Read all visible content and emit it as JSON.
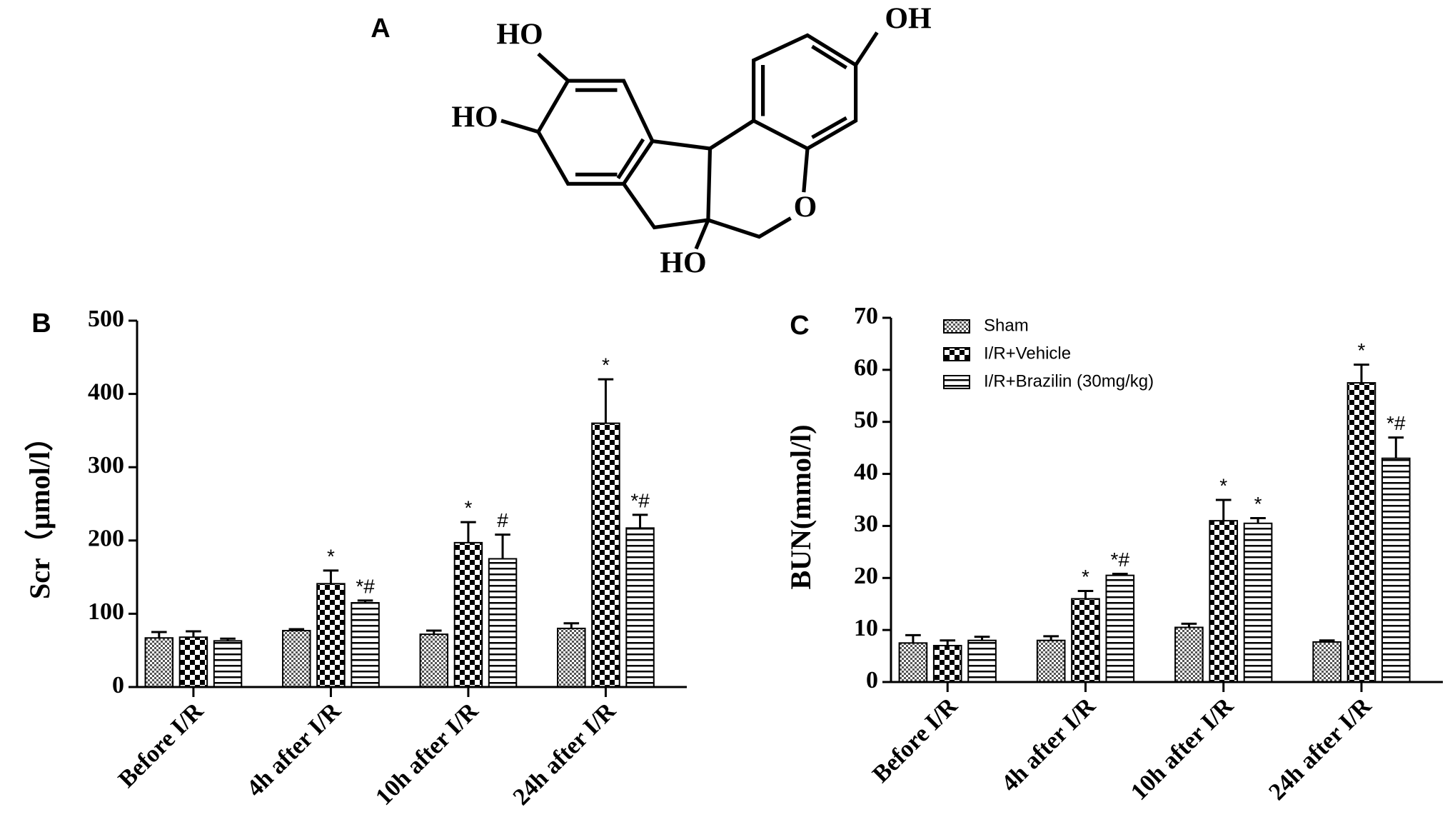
{
  "structure": {
    "label": "A",
    "atoms": [
      "HO",
      "HO",
      "HO",
      "O",
      "OH"
    ]
  },
  "chart_data": [
    {
      "type": "bar",
      "label": "B",
      "ylabel": "Scr（μmol/l）",
      "categories": [
        "Before I/R",
        "4h after I/R",
        "10h after I/R",
        "24h after I/R"
      ],
      "series": [
        {
          "pattern": "fine-check",
          "values": [
            67,
            77,
            72,
            80
          ],
          "errors": [
            8,
            2,
            5,
            7
          ],
          "annotations": [
            null,
            null,
            null,
            null
          ]
        },
        {
          "pattern": "check",
          "values": [
            68,
            141,
            197,
            360
          ],
          "errors": [
            8,
            18,
            28,
            60
          ],
          "annotations": [
            null,
            "*",
            "*",
            "*"
          ]
        },
        {
          "pattern": "hstripe",
          "values": [
            63,
            115,
            175,
            217
          ],
          "errors": [
            3,
            3,
            33,
            18
          ],
          "annotations": [
            null,
            "*#",
            "#",
            "*#"
          ]
        }
      ],
      "ylim": [
        0,
        500
      ],
      "yticks": [
        0,
        100,
        200,
        300,
        400,
        500
      ]
    },
    {
      "type": "bar",
      "label": "C",
      "ylabel": "BUN(mmol/l)",
      "categories": [
        "Before I/R",
        "4h after I/R",
        "10h after I/R",
        "24h after I/R"
      ],
      "series": [
        {
          "name": "Sham",
          "pattern": "fine-check",
          "values": [
            7.5,
            8,
            10.5,
            7.7
          ],
          "errors": [
            1.5,
            0.8,
            0.7,
            0.3
          ],
          "annotations": [
            null,
            null,
            null,
            null
          ]
        },
        {
          "name": "I/R+Vehicle",
          "pattern": "check",
          "values": [
            7,
            16,
            31,
            57.5
          ],
          "errors": [
            1,
            1.5,
            4,
            3.5
          ],
          "annotations": [
            null,
            "*",
            "*",
            "*"
          ]
        },
        {
          "name": "I/R+Brazilin (30mg/kg)",
          "pattern": "hstripe",
          "values": [
            8,
            20.5,
            30.5,
            43
          ],
          "errors": [
            0.7,
            0.3,
            1,
            4
          ],
          "annotations": [
            null,
            "*#",
            "*",
            "*#"
          ]
        }
      ],
      "ylim": [
        0,
        70
      ],
      "yticks": [
        0,
        10,
        20,
        30,
        40,
        50,
        60,
        70
      ],
      "legend": "top-left"
    }
  ]
}
